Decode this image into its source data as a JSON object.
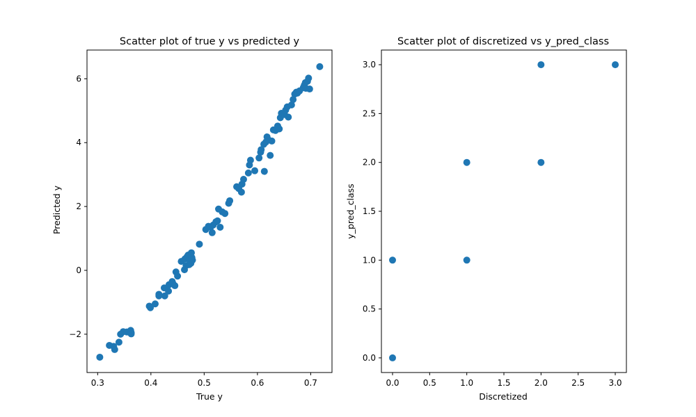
{
  "colors": {
    "marker": "#1f77b4",
    "axes": "#000000",
    "background": "#ffffff"
  },
  "chart_data": [
    {
      "type": "scatter",
      "title": "Scatter plot of true y vs predicted y",
      "xlabel": "True y",
      "ylabel": "Predicted y",
      "xlim": [
        0.28,
        0.74
      ],
      "ylim": [
        -3.2,
        6.9
      ],
      "xticks": [
        "0.3",
        "0.4",
        "0.5",
        "0.6",
        "0.7"
      ],
      "xtick_values": [
        0.3,
        0.4,
        0.5,
        0.6,
        0.7
      ],
      "yticks": [
        "−2",
        "0",
        "2",
        "4",
        "6"
      ],
      "ytick_values": [
        -2,
        0,
        2,
        4,
        6
      ],
      "grid": false,
      "x": [
        0.304,
        0.322,
        0.33,
        0.332,
        0.34,
        0.343,
        0.348,
        0.355,
        0.362,
        0.363,
        0.363,
        0.397,
        0.399,
        0.408,
        0.415,
        0.415,
        0.425,
        0.426,
        0.433,
        0.434,
        0.44,
        0.441,
        0.445,
        0.447,
        0.45,
        0.457,
        0.463,
        0.464,
        0.466,
        0.468,
        0.47,
        0.472,
        0.473,
        0.474,
        0.475,
        0.476,
        0.477,
        0.478,
        0.491,
        0.503,
        0.508,
        0.512,
        0.515,
        0.517,
        0.522,
        0.525,
        0.527,
        0.53,
        0.534,
        0.539,
        0.546,
        0.548,
        0.561,
        0.565,
        0.57,
        0.571,
        0.574,
        0.583,
        0.585,
        0.587,
        0.595,
        0.603,
        0.606,
        0.607,
        0.612,
        0.613,
        0.616,
        0.618,
        0.62,
        0.624,
        0.627,
        0.63,
        0.634,
        0.638,
        0.641,
        0.643,
        0.645,
        0.651,
        0.653,
        0.656,
        0.658,
        0.664,
        0.667,
        0.67,
        0.673,
        0.675,
        0.679,
        0.686,
        0.688,
        0.69,
        0.691,
        0.694,
        0.696,
        0.698,
        0.717
      ],
      "y": [
        -2.72,
        -2.35,
        -2.38,
        -2.48,
        -2.25,
        -2.0,
        -1.92,
        -1.93,
        -1.88,
        -1.95,
        -1.99,
        -1.12,
        -1.17,
        -1.05,
        -0.75,
        -0.8,
        -0.55,
        -0.8,
        -0.65,
        -0.45,
        -0.35,
        -0.4,
        -0.48,
        -0.05,
        -0.18,
        0.28,
        0.02,
        0.36,
        0.15,
        0.43,
        0.48,
        0.18,
        0.31,
        0.5,
        0.22,
        0.55,
        0.4,
        0.32,
        0.82,
        1.28,
        1.38,
        1.35,
        1.18,
        1.42,
        1.52,
        1.55,
        1.92,
        1.35,
        1.83,
        1.78,
        2.1,
        2.18,
        2.62,
        2.56,
        2.45,
        2.7,
        2.85,
        3.05,
        3.3,
        3.45,
        3.12,
        3.52,
        3.7,
        3.78,
        3.95,
        3.1,
        4.02,
        4.18,
        4.1,
        3.6,
        4.05,
        4.4,
        4.38,
        4.52,
        4.43,
        4.78,
        4.92,
        4.88,
        5.02,
        5.12,
        4.8,
        5.18,
        5.35,
        5.52,
        5.58,
        5.55,
        5.62,
        5.72,
        5.8,
        5.88,
        5.7,
        5.92,
        6.02,
        5.68,
        6.38
      ],
      "marker": "circle"
    },
    {
      "type": "scatter",
      "title": "Scatter plot of discretized vs y_pred_class",
      "xlabel": "Discretized",
      "ylabel": "y_pred_class",
      "xlim": [
        -0.15,
        3.15
      ],
      "ylim": [
        -0.15,
        3.15
      ],
      "xticks": [
        "0.0",
        "0.5",
        "1.0",
        "1.5",
        "2.0",
        "2.5",
        "3.0"
      ],
      "xtick_values": [
        0,
        0.5,
        1,
        1.5,
        2,
        2.5,
        3
      ],
      "yticks": [
        "0.0",
        "0.5",
        "1.0",
        "1.5",
        "2.0",
        "2.5",
        "3.0"
      ],
      "ytick_values": [
        0,
        0.5,
        1,
        1.5,
        2,
        2.5,
        3
      ],
      "grid": false,
      "x": [
        0,
        0,
        1,
        1,
        2,
        2,
        3
      ],
      "y": [
        0,
        1,
        1,
        2,
        2,
        3,
        3
      ],
      "marker": "circle"
    }
  ]
}
